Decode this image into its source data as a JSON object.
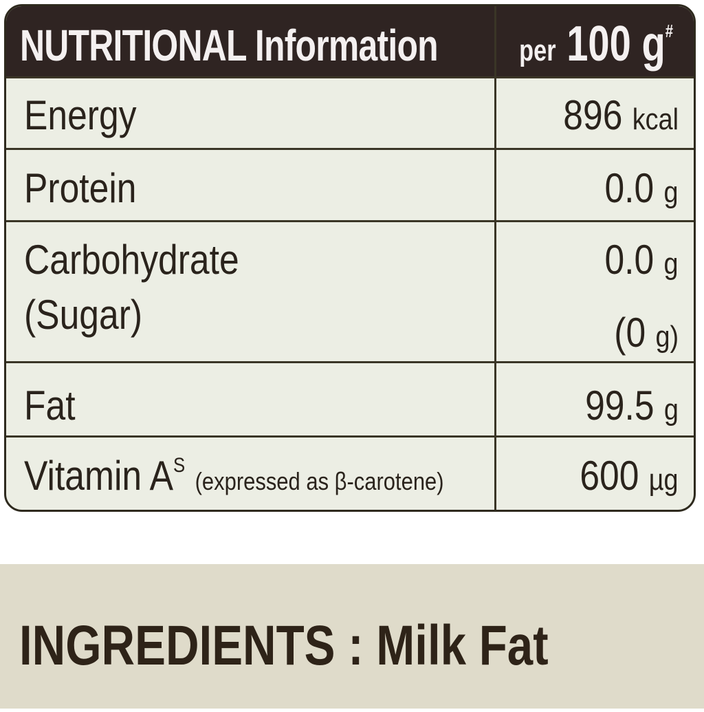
{
  "nutrition_table": {
    "header": {
      "title": "NUTRITIONAL Information",
      "per_prefix": "per",
      "per_amount": "100 g",
      "per_mark": "#"
    },
    "rows": [
      {
        "label": "Energy",
        "value": "896",
        "unit": "kcal"
      },
      {
        "label": "Protein",
        "value": "0.0",
        "unit": "g"
      },
      {
        "label": "Carbohydrate",
        "value": "0.0",
        "unit": "g",
        "sub_label": "(Sugar)",
        "sub_value": "(0",
        "sub_unit": "g)"
      },
      {
        "label": "Fat",
        "value": "99.5",
        "unit": "g"
      },
      {
        "label": "Vitamin A",
        "label_mark": "S",
        "note": "(expressed as β-carotene)",
        "value": "600",
        "unit": "µg"
      }
    ],
    "colors": {
      "header_bg": "#2f2422",
      "table_bg": "#eceee4",
      "border": "#2e2a1e"
    }
  },
  "ingredients": {
    "text": "INGREDIENTS : Milk Fat",
    "bg_color": "#dfdbca"
  }
}
